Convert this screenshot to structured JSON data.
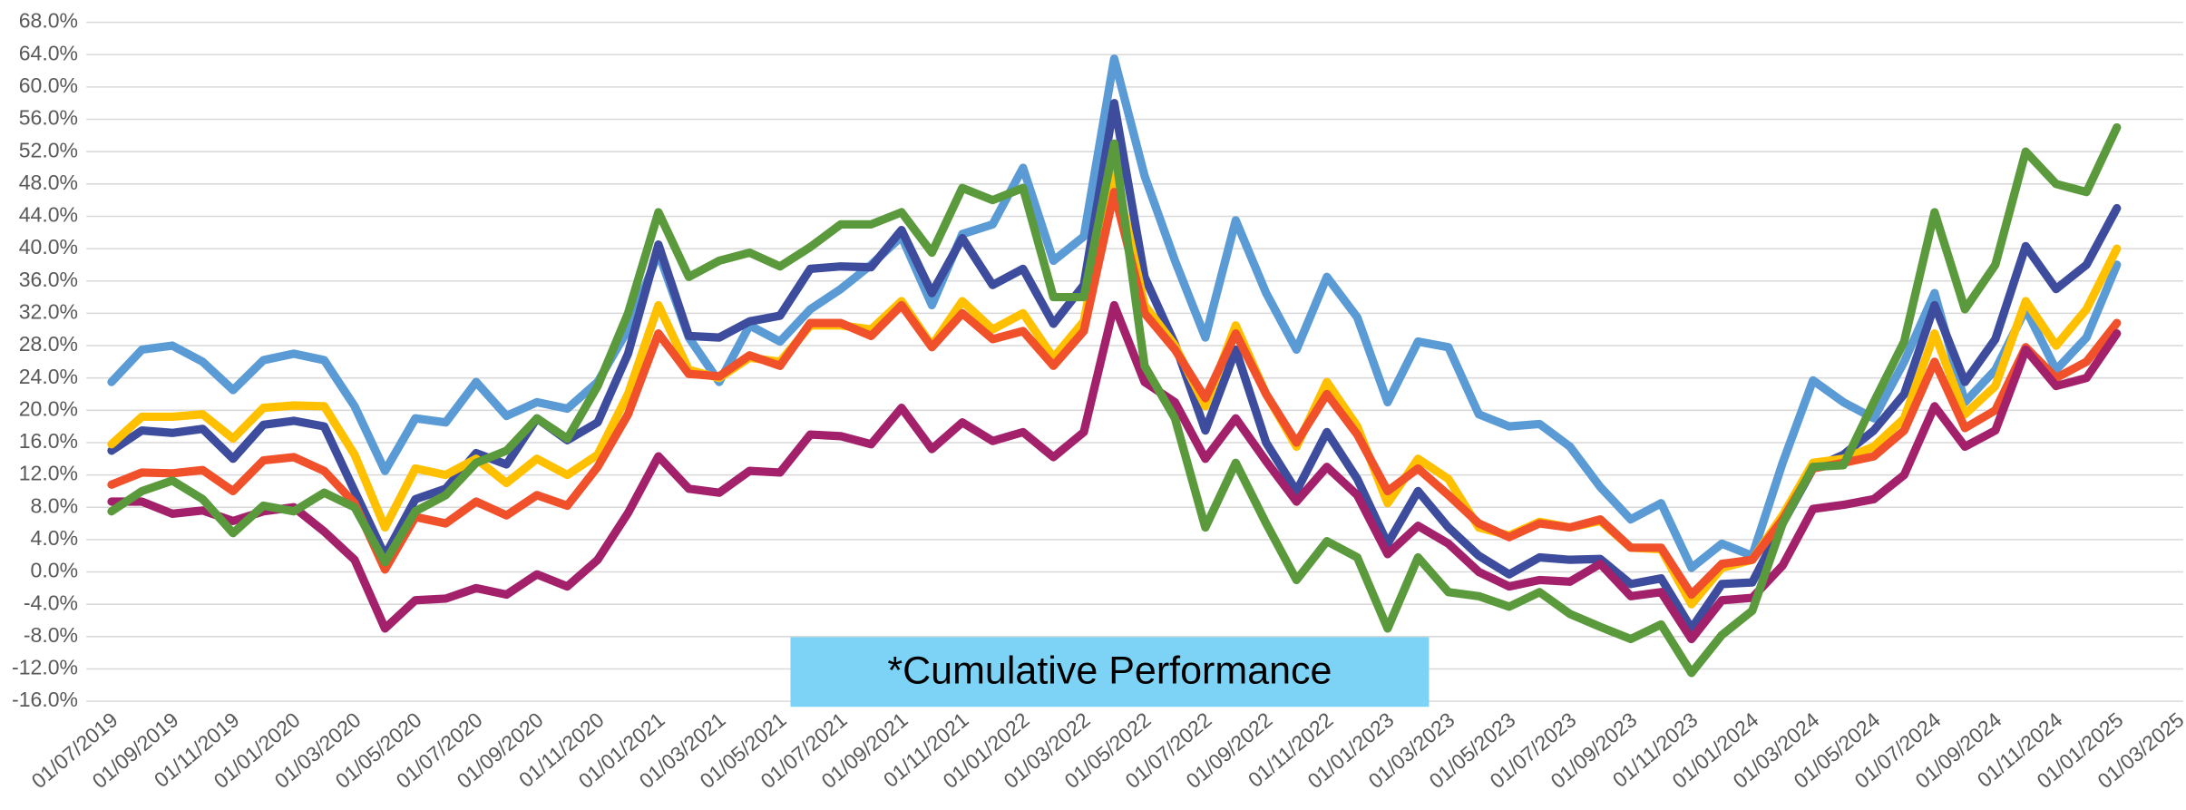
{
  "chart_data": {
    "type": "line",
    "annotation": "*Cumulative Performance",
    "annotation_color": "#7dd3f5",
    "categories": [
      "01/07/2019",
      null,
      "01/09/2019",
      null,
      "01/11/2019",
      null,
      "01/01/2020",
      null,
      "01/03/2020",
      null,
      "01/05/2020",
      null,
      "01/07/2020",
      null,
      "01/09/2020",
      null,
      "01/11/2020",
      null,
      "01/01/2021",
      null,
      "01/03/2021",
      null,
      "01/05/2021",
      null,
      "01/07/2021",
      null,
      "01/09/2021",
      null,
      "01/11/2021",
      null,
      "01/01/2022",
      null,
      "01/03/2022",
      null,
      "01/05/2022",
      null,
      "01/07/2022",
      null,
      "01/09/2022",
      null,
      "01/11/2022",
      null,
      "01/01/2023",
      null,
      "01/03/2023",
      null,
      "01/05/2023",
      null,
      "01/07/2023",
      null,
      "01/09/2023",
      null,
      "01/11/2023",
      null,
      "01/01/2024",
      null,
      "01/03/2024",
      null,
      "01/05/2024",
      null,
      "01/07/2024",
      null,
      "01/09/2024",
      null,
      "01/11/2024",
      null,
      "01/01/2025",
      null,
      "01/03/2025"
    ],
    "series": [
      {
        "color": "#5b9bd5",
        "values": [
          23.5,
          27.5,
          28,
          26,
          22.5,
          26.2,
          27,
          26.2,
          20.5,
          12.5,
          19,
          18.5,
          23.5,
          19.3,
          21,
          20.2,
          23.5,
          30,
          39.5,
          29,
          23.5,
          30.5,
          28.5,
          32.5,
          35,
          38,
          41.5,
          33,
          41.8,
          43,
          50,
          38.5,
          41.5,
          63.5,
          49,
          38.5,
          29,
          43.5,
          34.5,
          27.5,
          36.5,
          31.5,
          21,
          28.5,
          27.8,
          19.5,
          18,
          18.3,
          15.5,
          10.5,
          6.5,
          8.5,
          0.5,
          3.5,
          2,
          13.5,
          23.7,
          21,
          19,
          26,
          34.5,
          21,
          25,
          32.5,
          25,
          29,
          38,
          null,
          null
        ]
      },
      {
        "color": "#3e4c9e",
        "values": [
          15,
          17.5,
          17.2,
          17.7,
          14,
          18.2,
          18.7,
          18,
          10,
          2,
          9,
          10.3,
          14.7,
          13.3,
          19,
          16.3,
          18.5,
          27,
          40.5,
          29.2,
          29,
          31,
          31.7,
          37.5,
          37.8,
          37.7,
          42.3,
          34.5,
          41.3,
          35.5,
          37.5,
          30.7,
          35.5,
          58,
          36.5,
          28.2,
          17.5,
          27.5,
          16,
          10,
          17.3,
          11.5,
          3.5,
          10,
          5.5,
          2,
          -0.3,
          1.8,
          1.5,
          1.6,
          -1.5,
          -0.8,
          -7,
          -1.5,
          -1.3,
          6,
          12.8,
          14.5,
          17.5,
          22,
          33,
          23.5,
          28.8,
          40.3,
          35,
          38,
          45,
          null,
          null
        ]
      },
      {
        "color": "#ffc000",
        "values": [
          15.8,
          19.2,
          19.2,
          19.5,
          16.5,
          20.3,
          20.6,
          20.5,
          14.5,
          5.5,
          12.8,
          12,
          14,
          11,
          14,
          12,
          14.5,
          22,
          33,
          25,
          24,
          26.5,
          26,
          30.5,
          30.5,
          30,
          33.5,
          28,
          33.5,
          30,
          32,
          26.5,
          31,
          50,
          33,
          28,
          20.5,
          30.5,
          22,
          15.5,
          23.5,
          18,
          8.5,
          14,
          11.5,
          5.5,
          4.5,
          6.2,
          5.5,
          6.3,
          3,
          2.8,
          -4,
          0.5,
          1.5,
          7,
          13.5,
          14,
          15.5,
          19,
          29.5,
          19.5,
          23,
          33.5,
          28,
          32.5,
          40,
          null,
          null
        ]
      },
      {
        "color": "#f0502a",
        "values": [
          10.8,
          12.3,
          12.2,
          12.6,
          10,
          13.8,
          14.2,
          12.5,
          8.5,
          0.3,
          6.8,
          6,
          8.7,
          7,
          9.5,
          8.2,
          13,
          19.5,
          29.5,
          24.5,
          24.2,
          26.8,
          25.5,
          30.8,
          30.8,
          29.2,
          33,
          27.8,
          32,
          28.8,
          29.8,
          25.5,
          29.8,
          47,
          32,
          27.5,
          21.5,
          29.5,
          22,
          16,
          22,
          17,
          10,
          12.8,
          9.5,
          6,
          4.3,
          6,
          5.5,
          6.5,
          3,
          3,
          -2.8,
          1,
          1.5,
          6.5,
          12.8,
          13.5,
          14.3,
          17.5,
          26,
          17.8,
          20,
          27.8,
          24,
          26,
          30.8,
          null,
          null
        ]
      },
      {
        "color": "#a3206a",
        "values": [
          8.7,
          8.7,
          7.2,
          7.6,
          6.3,
          7.5,
          8,
          5,
          1.5,
          -7,
          -3.5,
          -3.3,
          -2,
          -2.8,
          -0.3,
          -1.8,
          1.5,
          7.3,
          14.3,
          10.3,
          9.8,
          12.5,
          12.3,
          17,
          16.8,
          15.8,
          20.3,
          15.2,
          18.5,
          16.2,
          17.3,
          14.2,
          17.3,
          33,
          23.5,
          21,
          14,
          19,
          13.7,
          8.7,
          13,
          9.5,
          2.2,
          5.7,
          3.5,
          0,
          -1.8,
          -1,
          -1.2,
          1,
          -3,
          -2.5,
          -8.3,
          -3.5,
          -3.2,
          0.8,
          7.8,
          8.3,
          9,
          12,
          20.5,
          15.5,
          17.5,
          27.5,
          23,
          24,
          29.5,
          null,
          null
        ]
      },
      {
        "color": "#5b9a3c",
        "values": [
          7.5,
          10,
          11.3,
          9,
          4.8,
          8.2,
          7.5,
          9.8,
          8,
          1.2,
          7.5,
          9.5,
          13.5,
          15,
          19,
          16.5,
          23,
          32,
          44.5,
          36.5,
          38.5,
          39.5,
          37.8,
          40.2,
          43,
          43,
          44.5,
          39.5,
          47.5,
          46,
          47.5,
          34,
          34,
          53,
          25.5,
          19,
          5.5,
          13.5,
          6,
          -1,
          3.8,
          1.8,
          -7,
          1.8,
          -2.5,
          -3,
          -4.3,
          -2.5,
          -5.2,
          -6.8,
          -8.3,
          -6.5,
          -12.5,
          -7.8,
          -4.8,
          6,
          13,
          13.2,
          21,
          28.5,
          44.5,
          32.5,
          38,
          52,
          48,
          47,
          55,
          null,
          null
        ]
      }
    ],
    "ylim": [
      -16,
      68
    ],
    "yticks": [
      {
        "value": -16,
        "label": "-16.0%"
      },
      {
        "value": -12,
        "label": "-12.0%"
      },
      {
        "value": -8,
        "label": "-8.0%"
      },
      {
        "value": -4,
        "label": "-4.0%"
      },
      {
        "value": 0,
        "label": "0.0%"
      },
      {
        "value": 4,
        "label": "4.0%"
      },
      {
        "value": 8,
        "label": "8.0%"
      },
      {
        "value": 12,
        "label": "12.0%"
      },
      {
        "value": 16,
        "label": "16.0%"
      },
      {
        "value": 20,
        "label": "20.0%"
      },
      {
        "value": 24,
        "label": "24.0%"
      },
      {
        "value": 28,
        "label": "28.0%"
      },
      {
        "value": 32,
        "label": "32.0%"
      },
      {
        "value": 36,
        "label": "36.0%"
      },
      {
        "value": 40,
        "label": "40.0%"
      },
      {
        "value": 44,
        "label": "44.0%"
      },
      {
        "value": 48,
        "label": "48.0%"
      },
      {
        "value": 52,
        "label": "52.0%"
      },
      {
        "value": 56,
        "label": "56.0%"
      },
      {
        "value": 60,
        "label": "60.0%"
      },
      {
        "value": 64,
        "label": "64.0%"
      },
      {
        "value": 68,
        "label": "68.0%"
      }
    ],
    "grid": true
  }
}
